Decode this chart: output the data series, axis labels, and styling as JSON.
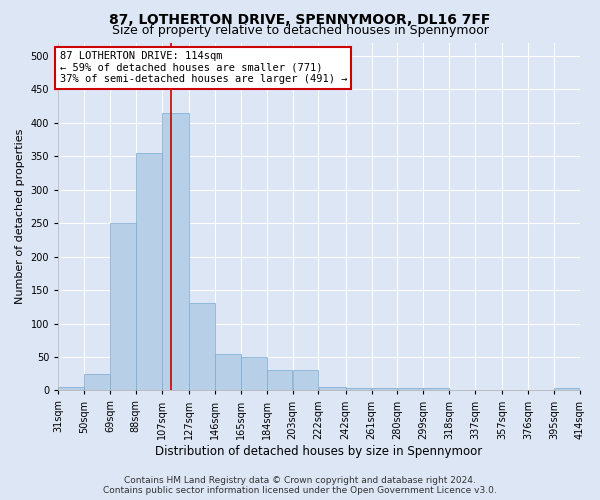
{
  "title": "87, LOTHERTON DRIVE, SPENNYMOOR, DL16 7FF",
  "subtitle": "Size of property relative to detached houses in Spennymoor",
  "xlabel": "Distribution of detached houses by size in Spennymoor",
  "ylabel": "Number of detached properties",
  "bar_color": "#b8cfe8",
  "bar_edge_color": "#7aaad0",
  "background_color": "#dce6f5",
  "grid_color": "#ffffff",
  "fig_background": "#dce6f5",
  "vline_x": 114,
  "vline_color": "#cc0000",
  "annotation_text": "87 LOTHERTON DRIVE: 114sqm\n← 59% of detached houses are smaller (771)\n37% of semi-detached houses are larger (491) →",
  "annotation_box_color": "#ffffff",
  "annotation_edge_color": "#cc0000",
  "bins": [
    31,
    50,
    69,
    88,
    107,
    127,
    146,
    165,
    184,
    203,
    222,
    242,
    261,
    280,
    299,
    318,
    337,
    357,
    376,
    395,
    414
  ],
  "bin_labels": [
    "31sqm",
    "50sqm",
    "69sqm",
    "88sqm",
    "107sqm",
    "127sqm",
    "146sqm",
    "165sqm",
    "184sqm",
    "203sqm",
    "222sqm",
    "242sqm",
    "261sqm",
    "280sqm",
    "299sqm",
    "318sqm",
    "337sqm",
    "357sqm",
    "376sqm",
    "395sqm",
    "414sqm"
  ],
  "bar_heights": [
    5,
    25,
    250,
    355,
    415,
    130,
    55,
    50,
    30,
    30,
    5,
    3,
    3,
    3,
    3,
    1,
    1,
    1,
    1,
    3
  ],
  "ylim": [
    0,
    520
  ],
  "yticks": [
    0,
    50,
    100,
    150,
    200,
    250,
    300,
    350,
    400,
    450,
    500
  ],
  "footer_text": "Contains HM Land Registry data © Crown copyright and database right 2024.\nContains public sector information licensed under the Open Government Licence v3.0.",
  "title_fontsize": 10,
  "subtitle_fontsize": 9,
  "xlabel_fontsize": 8.5,
  "ylabel_fontsize": 8,
  "tick_fontsize": 7,
  "footer_fontsize": 6.5,
  "annotation_fontsize": 7.5
}
